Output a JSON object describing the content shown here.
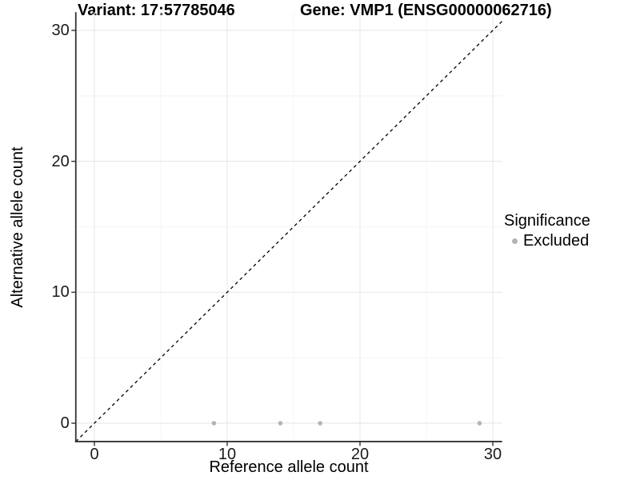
{
  "chart_data": {
    "type": "scatter",
    "titles": {
      "left": "Variant: 17:57785046",
      "right": "Gene: VMP1 (ENSG00000062716)"
    },
    "xlabel": "Reference allele count",
    "ylabel": "Alternative allele count",
    "xticks": {
      "values": [
        0,
        10,
        20,
        30
      ],
      "labels": [
        "0",
        "10",
        "20",
        "30"
      ]
    },
    "yticks": {
      "values": [
        0,
        10,
        20,
        30
      ],
      "labels": [
        "0",
        "10",
        "20",
        "30"
      ]
    },
    "x_minor": [
      5,
      15,
      25
    ],
    "y_minor": [
      5,
      15,
      25
    ],
    "xlim": [
      -1.4,
      30.7
    ],
    "ylim": [
      -1.4,
      31.4
    ],
    "grid": true,
    "legend_position": "right",
    "series": [
      {
        "name": "Excluded",
        "color": "#b4b4b4",
        "marker": "circle",
        "points": [
          {
            "x": 9,
            "y": 0
          },
          {
            "x": 14,
            "y": 0
          },
          {
            "x": 17,
            "y": 0
          },
          {
            "x": 29,
            "y": 0
          }
        ]
      }
    ],
    "reference_line": {
      "type": "abline",
      "slope": 1,
      "intercept": 0,
      "linestyle": "dashed",
      "color": "#000000"
    },
    "legend": {
      "title": "Significance",
      "items": [
        {
          "label": "Excluded",
          "color": "#b4b4b4"
        }
      ]
    }
  },
  "colors": {
    "background": "#ffffff",
    "grid_major": "#e9e9e9",
    "grid_minor": "#f4f4f4",
    "axis": "#333333",
    "tick": "#333333"
  }
}
